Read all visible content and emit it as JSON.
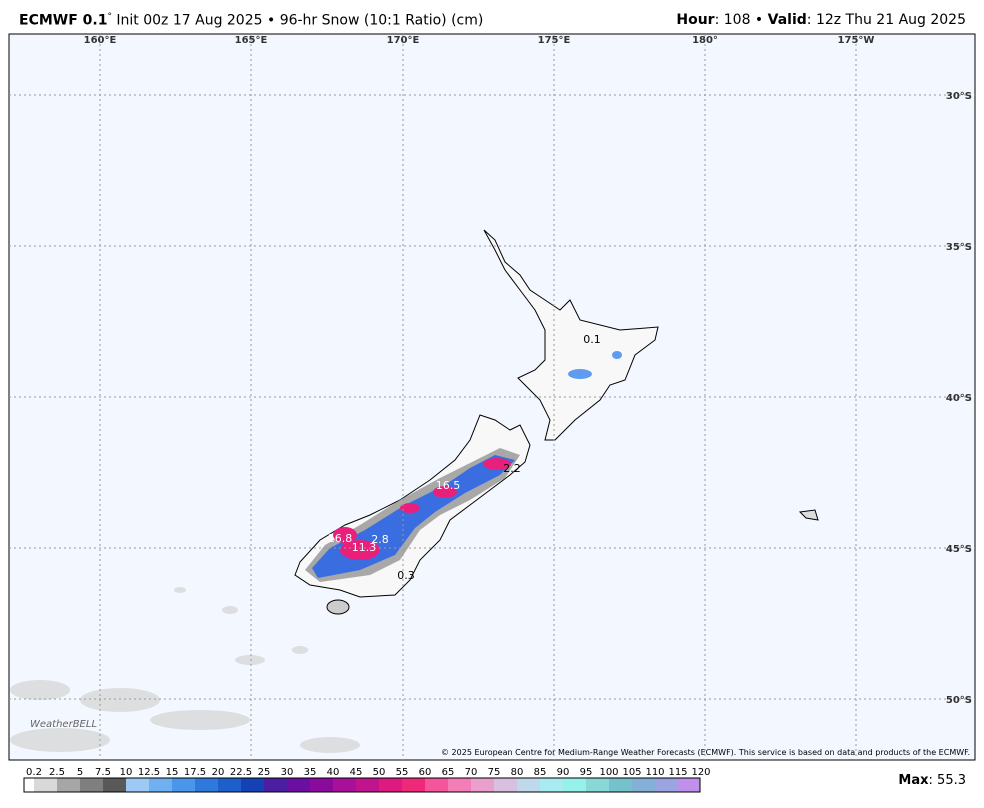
{
  "header": {
    "model": "ECMWF 0.1",
    "degree": "°",
    "description": "Init 00z 17 Aug 2025 • 96-hr Snow (10:1 Ratio) (cm)",
    "hour_label": "Hour",
    "hour_value": ": 108 • ",
    "valid_label": "Valid",
    "valid_value": ": 12z Thu 21 Aug 2025"
  },
  "map": {
    "longitudes": [
      "160°E",
      "165°E",
      "170°E",
      "175°E",
      "180°",
      "175°W"
    ],
    "latitudes": [
      "30°S",
      "35°S",
      "40°S",
      "45°S",
      "50°S"
    ],
    "point_labels": [
      "0.1",
      "16.5",
      "16.8",
      "11.3",
      "2.8",
      "0.3",
      "2.2"
    ],
    "copyright": "© 2025 European Centre for Medium-Range Weather Forecasts (ECMWF). This service is based on data and products of the ECMWF.",
    "logo": "WeatherBELL"
  },
  "colorbar": {
    "labels": [
      "0.2",
      "2.5",
      "5",
      "7.5",
      "10",
      "12.5",
      "15",
      "17.5",
      "20",
      "22.5",
      "25",
      "30",
      "35",
      "40",
      "45",
      "50",
      "55",
      "60",
      "65",
      "70",
      "75",
      "80",
      "85",
      "90",
      "95",
      "100",
      "105",
      "110",
      "115",
      "120"
    ],
    "colors": [
      "#ffffff",
      "#d9d9d9",
      "#a6a6a6",
      "#7f7f7f",
      "#595959",
      "#9dc9f5",
      "#6eb0f0",
      "#4a96ea",
      "#2f78dc",
      "#1e5fcc",
      "#1442b4",
      "#4b1fa0",
      "#6a0fa0",
      "#8a0a9e",
      "#a8109a",
      "#c0148e",
      "#dc1a80",
      "#f0287a",
      "#f5559a",
      "#f27eb5",
      "#e9a0cc",
      "#d8c0e0",
      "#c0d8ec",
      "#a8ecf2",
      "#96f2e8",
      "#88d8d8",
      "#76c2cc",
      "#84b0d8",
      "#9aa4e0",
      "#c090ec"
    ],
    "max_label": "Max",
    "max_value": ": 55.3"
  }
}
